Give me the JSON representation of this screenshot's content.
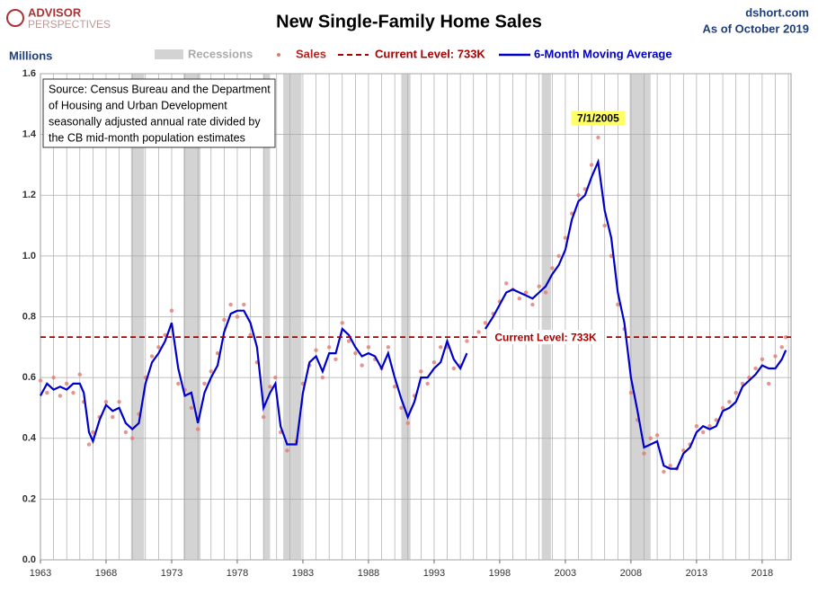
{
  "header": {
    "logo_top": "ADVISOR",
    "logo_bottom": "PERSPECTIVES",
    "site": "dshort.com",
    "as_of": "As of October 2019"
  },
  "chart_data": {
    "type": "scatter_line",
    "title": "New Single-Family Home Sales",
    "y_label": "Millions",
    "source": [
      "Source: Census Bureau and the Department",
      "of Housing and Urban Development",
      "seasonally adjusted annual rate divided by",
      "the CB mid-month population estimates"
    ],
    "x": [
      1963,
      1963.5,
      1964,
      1964.5,
      1965,
      1965.5,
      1966,
      1966.3,
      1966.7,
      1967,
      1967.5,
      1968,
      1968.5,
      1969,
      1969.5,
      1970,
      1970.5,
      1971,
      1971.5,
      1972,
      1972.5,
      1973,
      1973.5,
      1974,
      1974.5,
      1975,
      1975.5,
      1976,
      1976.5,
      1977,
      1977.5,
      1978,
      1978.5,
      1979,
      1979.5,
      1980,
      1980.5,
      1980.9,
      1981.3,
      1981.8,
      1982.5,
      1983,
      1983.5,
      1984,
      1984.5,
      1985,
      1985.5,
      1986,
      1986.5,
      1987,
      1987.5,
      1988,
      1988.5,
      1989,
      1989.5,
      1990,
      1990.5,
      1991,
      1991.5,
      1992,
      1992.5,
      1993,
      1993.5,
      1994,
      1994.5,
      1995,
      1995.5,
      1996.4,
      1996.9,
      1997.5,
      1998,
      1998.5,
      1999,
      1999.5,
      2000,
      2000.5,
      2001,
      2001.5,
      2002,
      2002.5,
      2003,
      2003.5,
      2004,
      2004.5,
      2005,
      2005.5,
      2006,
      2006.5,
      2007,
      2007.5,
      2008,
      2008.5,
      2009,
      2009.5,
      2010,
      2010.5,
      2011,
      2011.5,
      2012,
      2012.5,
      2013,
      2013.5,
      2014,
      2014.5,
      2015,
      2015.5,
      2016,
      2016.5,
      2017,
      2017.5,
      2018,
      2018.5,
      2019,
      2019.5,
      2019.8
    ],
    "series": [
      {
        "name": "Sales",
        "kind": "scatter",
        "color": "#e07a70",
        "values": [
          0.59,
          0.55,
          0.6,
          0.54,
          0.58,
          0.55,
          0.61,
          0.52,
          0.38,
          0.42,
          0.47,
          0.52,
          0.47,
          0.52,
          0.42,
          0.4,
          0.48,
          0.6,
          0.67,
          0.7,
          0.74,
          0.82,
          0.58,
          0.56,
          0.5,
          0.43,
          0.58,
          0.62,
          0.68,
          0.79,
          0.84,
          0.8,
          0.84,
          0.74,
          0.65,
          0.47,
          0.57,
          0.6,
          0.42,
          0.36,
          0.39,
          0.58,
          0.64,
          0.69,
          0.6,
          0.7,
          0.66,
          0.78,
          0.72,
          0.68,
          0.64,
          0.7,
          0.66,
          0.63,
          0.7,
          0.57,
          0.5,
          0.45,
          0.54,
          0.62,
          0.58,
          0.65,
          0.7,
          0.7,
          0.63,
          0.64,
          0.72,
          0.75,
          0.78,
          0.81,
          0.85,
          0.91,
          0.89,
          0.86,
          0.88,
          0.84,
          0.9,
          0.88,
          0.96,
          1.0,
          1.06,
          1.14,
          1.2,
          1.22,
          1.3,
          1.39,
          1.1,
          1.0,
          0.84,
          0.76,
          0.55,
          0.46,
          0.35,
          0.4,
          0.41,
          0.29,
          0.31,
          0.3,
          0.36,
          0.38,
          0.44,
          0.42,
          0.44,
          0.46,
          0.5,
          0.52,
          0.55,
          0.58,
          0.6,
          0.63,
          0.66,
          0.58,
          0.67,
          0.7,
          0.733
        ]
      },
      {
        "name": "6-Month Moving Average",
        "kind": "line",
        "color": "#0000cc",
        "values": [
          0.54,
          0.58,
          0.56,
          0.57,
          0.56,
          0.58,
          0.58,
          0.55,
          0.42,
          0.39,
          0.46,
          0.51,
          0.49,
          0.5,
          0.45,
          0.43,
          0.45,
          0.58,
          0.65,
          0.68,
          0.72,
          0.78,
          0.63,
          0.54,
          0.55,
          0.45,
          0.55,
          0.6,
          0.64,
          0.75,
          0.81,
          0.82,
          0.82,
          0.78,
          0.7,
          0.5,
          0.55,
          0.58,
          0.44,
          0.38,
          0.38,
          0.55,
          0.65,
          0.67,
          0.62,
          0.68,
          0.68,
          0.76,
          0.74,
          0.7,
          0.67,
          0.68,
          0.67,
          0.63,
          0.68,
          0.6,
          0.53,
          0.47,
          0.52,
          0.6,
          0.6,
          0.63,
          0.65,
          0.72,
          0.66,
          0.63,
          0.68,
          null,
          0.76,
          0.8,
          0.84,
          0.88,
          0.89,
          0.88,
          0.87,
          0.86,
          0.88,
          0.9,
          0.94,
          0.97,
          1.02,
          1.12,
          1.18,
          1.2,
          1.26,
          1.31,
          1.15,
          1.06,
          0.88,
          0.78,
          0.6,
          0.49,
          0.37,
          0.38,
          0.39,
          0.31,
          0.3,
          0.3,
          0.35,
          0.37,
          0.42,
          0.44,
          0.43,
          0.44,
          0.49,
          0.5,
          0.52,
          0.57,
          0.59,
          0.61,
          0.64,
          0.63,
          0.63,
          0.66,
          0.69
        ]
      }
    ],
    "recessions_name": "Recessions",
    "recessions": [
      [
        1969.9,
        1970.9
      ],
      [
        1973.9,
        1975.2
      ],
      [
        1980.0,
        1980.5
      ],
      [
        1981.5,
        1982.9
      ],
      [
        1990.5,
        1991.2
      ],
      [
        2001.2,
        2001.9
      ],
      [
        2007.9,
        2009.5
      ]
    ],
    "current_level": {
      "label": "Current Level: 733K",
      "value": 0.733,
      "color": "#aa0000"
    },
    "peak_annotation": {
      "text": "7/1/2005",
      "x": 2005.5,
      "y": 1.389
    },
    "xlim": [
      1963,
      2020.2
    ],
    "xticks": [
      1963,
      1968,
      1973,
      1978,
      1983,
      1988,
      1993,
      1998,
      2003,
      2008,
      2013,
      2018
    ],
    "ylim": [
      0,
      1.6
    ],
    "yticks": [
      {
        "value": 0,
        "label": "0.0"
      },
      0.2,
      0.4,
      0.6,
      0.8,
      {
        "value": 1,
        "label": "1.0"
      },
      1.2,
      1.4,
      1.6
    ],
    "grid": true
  }
}
